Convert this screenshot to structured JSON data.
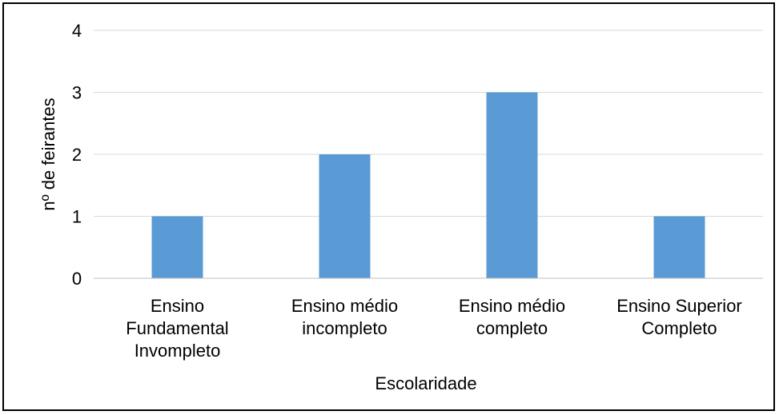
{
  "chart_data": {
    "type": "bar",
    "categories": [
      [
        "Ensino",
        "Fundamental",
        "Invompleto"
      ],
      [
        "Ensino médio",
        "incompleto"
      ],
      [
        "Ensino médio",
        "completo"
      ],
      [
        "Ensino Superior",
        "Completo"
      ]
    ],
    "values": [
      1,
      2,
      3,
      1
    ],
    "xlabel": "Escolaridade",
    "ylabel": "nº de feirantes",
    "ylim": [
      0,
      4
    ],
    "yticks": [
      0,
      1,
      2,
      3,
      4
    ],
    "grid": true,
    "bar_color": "#5b9bd5",
    "grid_color": "#d9d9d9",
    "axis_color": "#bfbfbf"
  }
}
